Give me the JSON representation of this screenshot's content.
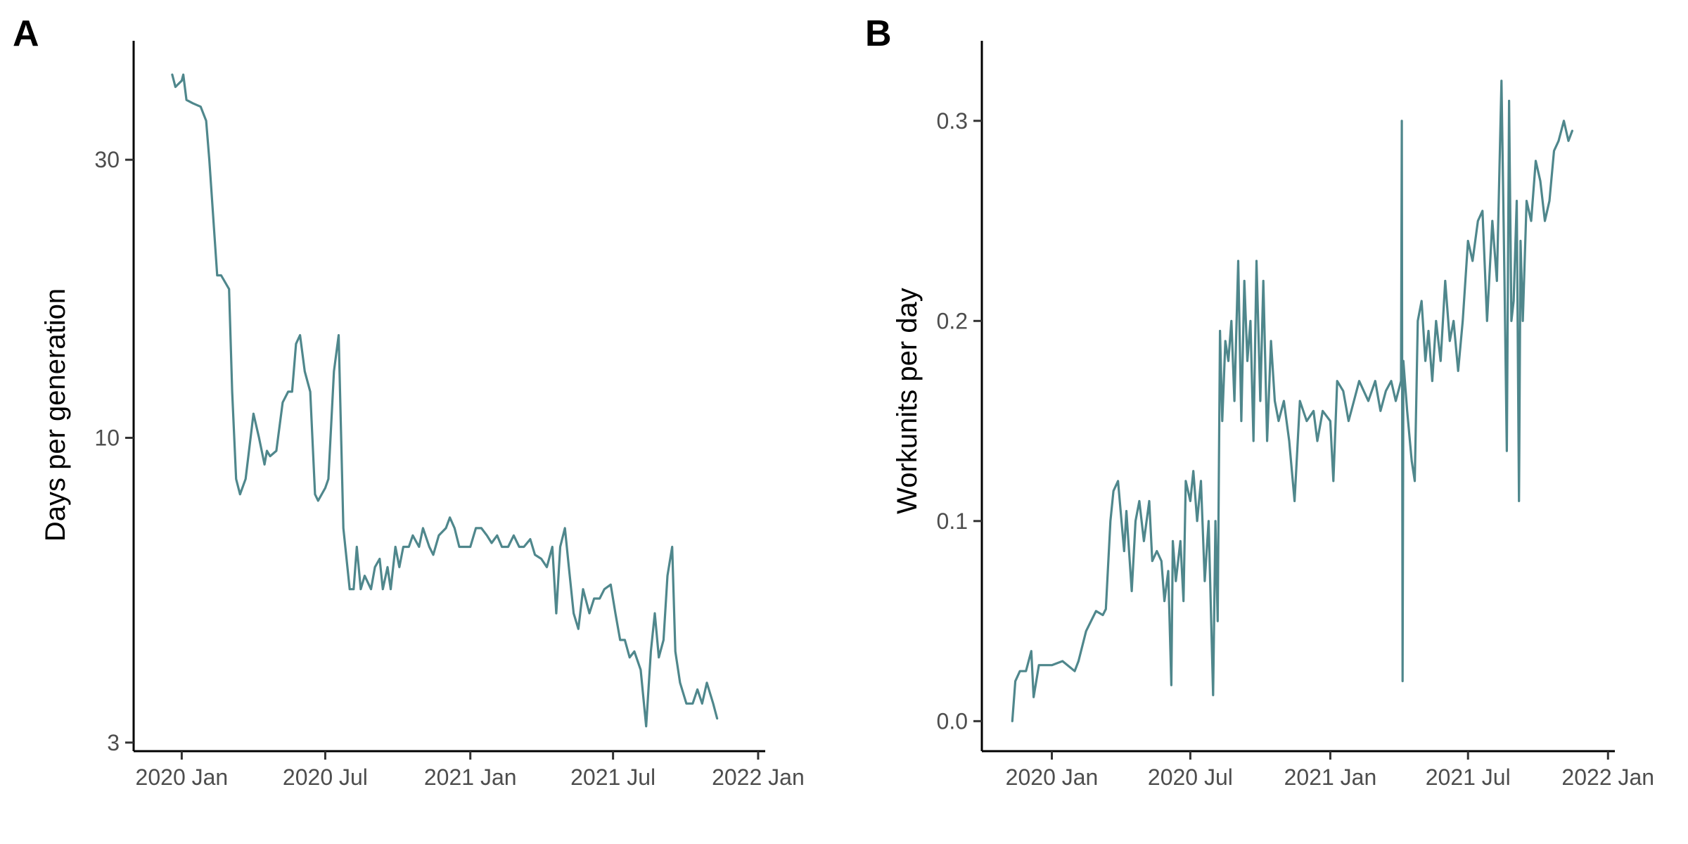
{
  "figure": {
    "line_color": "#4f878c",
    "panels": [
      "A",
      "B"
    ]
  },
  "chart_data": [
    {
      "type": "line",
      "panel": "A",
      "xlabel": "",
      "ylabel": "Days per generation",
      "yscale": "log",
      "xlim": [
        "2019-11-01",
        "2022-01-10"
      ],
      "ylim": [
        2.9,
        48
      ],
      "x_ticks": [
        {
          "date": "2020-01-01",
          "label": "2020 Jan"
        },
        {
          "date": "2020-07-01",
          "label": "2020 Jul"
        },
        {
          "date": "2021-01-01",
          "label": "2021 Jan"
        },
        {
          "date": "2021-07-01",
          "label": "2021 Jul"
        },
        {
          "date": "2022-01-01",
          "label": "2022 Jan"
        }
      ],
      "y_ticks": [
        {
          "value": 3,
          "label": "3"
        },
        {
          "value": 10,
          "label": "10"
        },
        {
          "value": 30,
          "label": "30"
        }
      ],
      "grid": false,
      "legend": "none",
      "series": [
        {
          "x": [
            "2019-12-20",
            "2019-12-24",
            "2020-01-01",
            "2020-01-03",
            "2020-01-07",
            "2020-01-15",
            "2020-01-25",
            "2020-02-01",
            "2020-02-05",
            "2020-02-15",
            "2020-02-20",
            "2020-03-01",
            "2020-03-05",
            "2020-03-10",
            "2020-03-15",
            "2020-03-22",
            "2020-04-01",
            "2020-04-08",
            "2020-04-15",
            "2020-04-18",
            "2020-04-22",
            "2020-04-30",
            "2020-05-08",
            "2020-05-15",
            "2020-05-20",
            "2020-05-25",
            "2020-05-30",
            "2020-06-05",
            "2020-06-12",
            "2020-06-18",
            "2020-06-22",
            "2020-07-01",
            "2020-07-05",
            "2020-07-12",
            "2020-07-18",
            "2020-07-24",
            "2020-08-01",
            "2020-08-06",
            "2020-08-10",
            "2020-08-15",
            "2020-08-20",
            "2020-08-28",
            "2020-09-02",
            "2020-09-08",
            "2020-09-12",
            "2020-09-18",
            "2020-09-22",
            "2020-09-28",
            "2020-10-03",
            "2020-10-08",
            "2020-10-15",
            "2020-10-20",
            "2020-10-28",
            "2020-11-02",
            "2020-11-10",
            "2020-11-15",
            "2020-11-22",
            "2020-12-01",
            "2020-12-06",
            "2020-12-12",
            "2020-12-18",
            "2020-12-25",
            "2021-01-01",
            "2021-01-08",
            "2021-01-15",
            "2021-01-22",
            "2021-01-28",
            "2021-02-04",
            "2021-02-10",
            "2021-02-18",
            "2021-02-25",
            "2021-03-04",
            "2021-03-10",
            "2021-03-18",
            "2021-03-24",
            "2021-04-01",
            "2021-04-08",
            "2021-04-15",
            "2021-04-20",
            "2021-04-25",
            "2021-05-01",
            "2021-05-06",
            "2021-05-12",
            "2021-05-18",
            "2021-05-24",
            "2021-06-01",
            "2021-06-07",
            "2021-06-14",
            "2021-06-20",
            "2021-06-28",
            "2021-07-04",
            "2021-07-10",
            "2021-07-16",
            "2021-07-22",
            "2021-07-28",
            "2021-08-05",
            "2021-08-12",
            "2021-08-18",
            "2021-08-23",
            "2021-08-28",
            "2021-09-03",
            "2021-09-08",
            "2021-09-14",
            "2021-09-18",
            "2021-09-24",
            "2021-10-02",
            "2021-10-10",
            "2021-10-16",
            "2021-10-22",
            "2021-10-28",
            "2021-11-05",
            "2021-11-10"
          ],
          "y": [
            42,
            40,
            41,
            42,
            38,
            37.5,
            37,
            35,
            30,
            19,
            19,
            18,
            12,
            8.5,
            8,
            8.5,
            11,
            10,
            9,
            9.5,
            9.3,
            9.5,
            11.5,
            12,
            12,
            14.5,
            15,
            13,
            12,
            8,
            7.8,
            8.2,
            8.5,
            13,
            15,
            7,
            5.5,
            5.5,
            6.5,
            5.5,
            5.8,
            5.5,
            6,
            6.2,
            5.5,
            6,
            5.5,
            6.5,
            6,
            6.5,
            6.5,
            6.8,
            6.5,
            7,
            6.5,
            6.3,
            6.8,
            7,
            7.3,
            7,
            6.5,
            6.5,
            6.5,
            7,
            7,
            6.8,
            6.6,
            6.8,
            6.5,
            6.5,
            6.8,
            6.5,
            6.5,
            6.7,
            6.3,
            6.2,
            6,
            6.5,
            5,
            6.5,
            7,
            6,
            5,
            4.7,
            5.5,
            5,
            5.3,
            5.3,
            5.5,
            5.6,
            5,
            4.5,
            4.5,
            4.2,
            4.3,
            4,
            3.2,
            4.3,
            5,
            4.2,
            4.5,
            5.8,
            6.5,
            4.3,
            3.8,
            3.5,
            3.5,
            3.7,
            3.5,
            3.8,
            3.5,
            3.3
          ]
        }
      ]
    },
    {
      "type": "line",
      "panel": "B",
      "xlabel": "",
      "ylabel": "Workunits per day",
      "yscale": "linear",
      "xlim": [
        "2019-10-01",
        "2022-01-10"
      ],
      "ylim": [
        -0.015,
        0.34
      ],
      "x_ticks": [
        {
          "date": "2020-01-01",
          "label": "2020 Jan"
        },
        {
          "date": "2020-07-01",
          "label": "2020 Jul"
        },
        {
          "date": "2021-01-01",
          "label": "2021 Jan"
        },
        {
          "date": "2021-07-01",
          "label": "2021 Jul"
        },
        {
          "date": "2022-01-01",
          "label": "2022 Jan"
        }
      ],
      "y_ticks": [
        {
          "value": 0.0,
          "label": "0.0"
        },
        {
          "value": 0.1,
          "label": "0.1"
        },
        {
          "value": 0.2,
          "label": "0.2"
        },
        {
          "value": 0.3,
          "label": "0.3"
        }
      ],
      "grid": false,
      "legend": "none",
      "series": [
        {
          "x": [
            "2019-11-10",
            "2019-11-14",
            "2019-11-20",
            "2019-11-28",
            "2019-12-05",
            "2019-12-08",
            "2019-12-15",
            "2020-01-01",
            "2020-01-15",
            "2020-01-31",
            "2020-02-05",
            "2020-02-15",
            "2020-02-28",
            "2020-03-08",
            "2020-03-12",
            "2020-03-18",
            "2020-03-22",
            "2020-03-28",
            "2020-04-05",
            "2020-04-08",
            "2020-04-15",
            "2020-04-20",
            "2020-04-25",
            "2020-05-01",
            "2020-05-08",
            "2020-05-12",
            "2020-05-18",
            "2020-05-24",
            "2020-05-28",
            "2020-06-02",
            "2020-06-06",
            "2020-06-08",
            "2020-06-12",
            "2020-06-18",
            "2020-06-22",
            "2020-06-25",
            "2020-07-01",
            "2020-07-05",
            "2020-07-10",
            "2020-07-15",
            "2020-07-20",
            "2020-07-25",
            "2020-07-31",
            "2020-08-03",
            "2020-08-06",
            "2020-08-09",
            "2020-08-12",
            "2020-08-16",
            "2020-08-20",
            "2020-08-24",
            "2020-08-28",
            "2020-09-02",
            "2020-09-06",
            "2020-09-10",
            "2020-09-14",
            "2020-09-18",
            "2020-09-22",
            "2020-09-26",
            "2020-10-01",
            "2020-10-05",
            "2020-10-10",
            "2020-10-15",
            "2020-10-20",
            "2020-10-25",
            "2020-11-01",
            "2020-11-08",
            "2020-11-15",
            "2020-11-22",
            "2020-12-01",
            "2020-12-10",
            "2020-12-15",
            "2020-12-22",
            "2021-01-01",
            "2021-01-05",
            "2021-01-10",
            "2021-01-18",
            "2021-01-25",
            "2021-02-01",
            "2021-02-08",
            "2021-02-14",
            "2021-02-20",
            "2021-03-01",
            "2021-03-08",
            "2021-03-15",
            "2021-03-22",
            "2021-03-28",
            "2021-04-04",
            "2021-04-05",
            "2021-04-06",
            "2021-04-07",
            "2021-04-12",
            "2021-04-18",
            "2021-04-22",
            "2021-04-26",
            "2021-05-01",
            "2021-05-06",
            "2021-05-10",
            "2021-05-15",
            "2021-05-20",
            "2021-05-26",
            "2021-06-01",
            "2021-06-07",
            "2021-06-12",
            "2021-06-18",
            "2021-06-24",
            "2021-07-01",
            "2021-07-07",
            "2021-07-14",
            "2021-07-20",
            "2021-07-26",
            "2021-08-02",
            "2021-08-08",
            "2021-08-14",
            "2021-08-18",
            "2021-08-21",
            "2021-08-24",
            "2021-08-27",
            "2021-08-30",
            "2021-09-03",
            "2021-09-06",
            "2021-09-08",
            "2021-09-11",
            "2021-09-16",
            "2021-09-22",
            "2021-09-28",
            "2021-10-04",
            "2021-10-10",
            "2021-10-16",
            "2021-10-22",
            "2021-10-28",
            "2021-11-04",
            "2021-11-10",
            "2021-11-15"
          ],
          "y": [
            0.0,
            0.02,
            0.025,
            0.025,
            0.035,
            0.012,
            0.028,
            0.028,
            0.03,
            0.025,
            0.03,
            0.045,
            0.055,
            0.053,
            0.056,
            0.1,
            0.115,
            0.12,
            0.085,
            0.105,
            0.065,
            0.1,
            0.11,
            0.09,
            0.11,
            0.08,
            0.085,
            0.08,
            0.06,
            0.075,
            0.018,
            0.09,
            0.07,
            0.09,
            0.06,
            0.12,
            0.11,
            0.125,
            0.1,
            0.12,
            0.07,
            0.1,
            0.013,
            0.1,
            0.05,
            0.195,
            0.15,
            0.19,
            0.18,
            0.2,
            0.16,
            0.23,
            0.15,
            0.22,
            0.18,
            0.2,
            0.14,
            0.23,
            0.16,
            0.22,
            0.14,
            0.19,
            0.16,
            0.15,
            0.16,
            0.14,
            0.11,
            0.16,
            0.15,
            0.155,
            0.14,
            0.155,
            0.15,
            0.12,
            0.17,
            0.165,
            0.15,
            0.16,
            0.17,
            0.165,
            0.16,
            0.17,
            0.155,
            0.165,
            0.17,
            0.16,
            0.17,
            0.3,
            0.02,
            0.18,
            0.155,
            0.13,
            0.12,
            0.2,
            0.21,
            0.18,
            0.195,
            0.17,
            0.2,
            0.18,
            0.22,
            0.19,
            0.2,
            0.175,
            0.2,
            0.24,
            0.23,
            0.25,
            0.255,
            0.2,
            0.25,
            0.22,
            0.32,
            0.22,
            0.135,
            0.31,
            0.2,
            0.21,
            0.26,
            0.11,
            0.24,
            0.2,
            0.26,
            0.25,
            0.28,
            0.27,
            0.25,
            0.26,
            0.285,
            0.29,
            0.3,
            0.29,
            0.295
          ]
        }
      ]
    }
  ]
}
